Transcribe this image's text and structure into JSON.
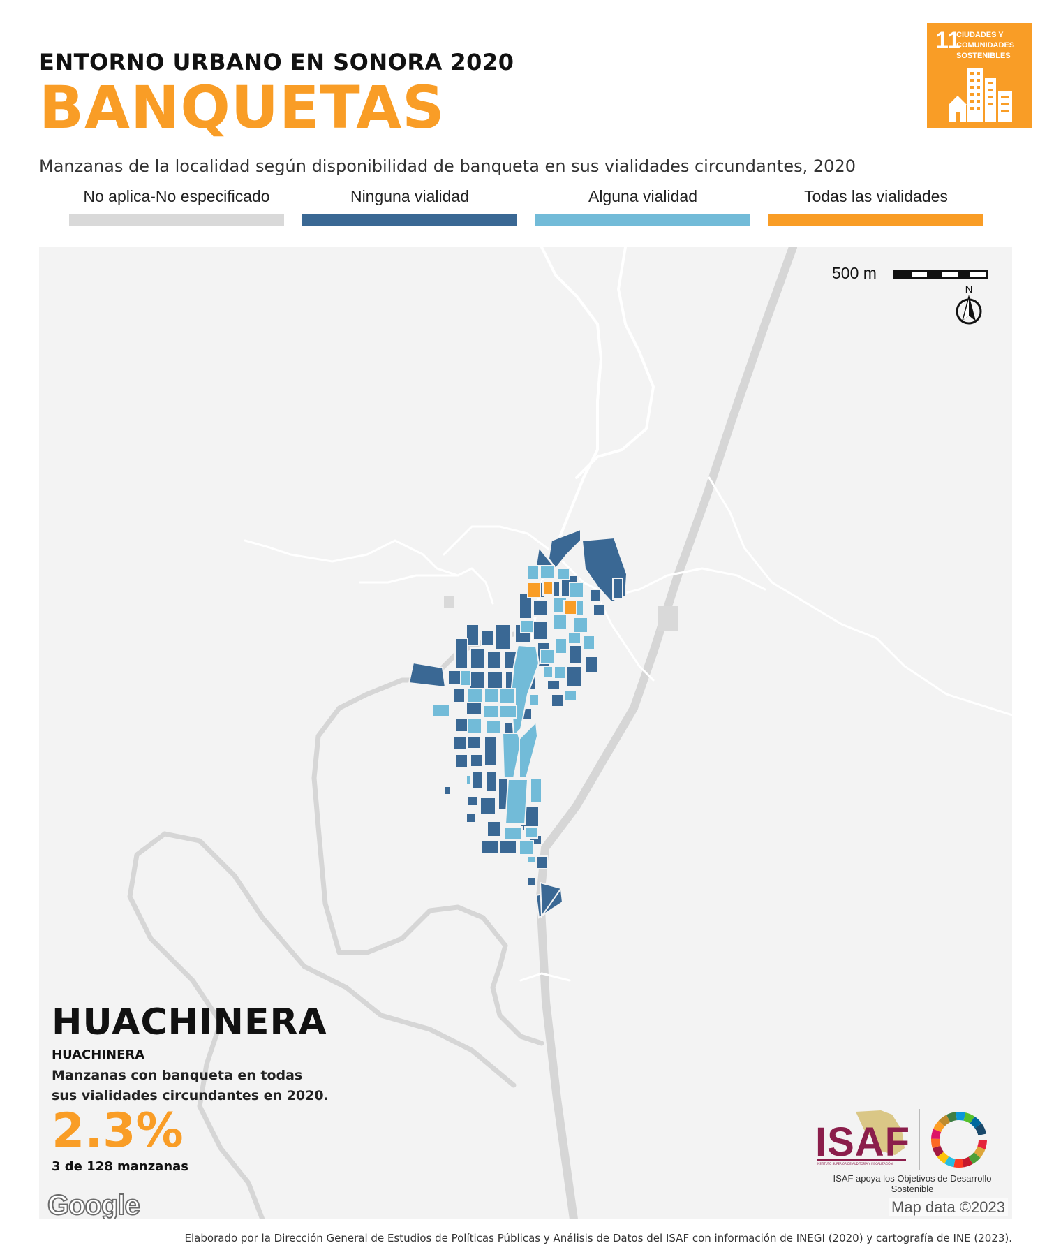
{
  "header": {
    "kicker": "ENTORNO URBANO EN SONORA 2020",
    "title": "BANQUETAS",
    "subtitle": "Manzanas de la localidad según disponibilidad de banqueta en sus vialidades circundantes, 2020"
  },
  "sdg_badge": {
    "number": "11",
    "text": "CIUDADES Y COMUNIDADES SOSTENIBLES",
    "color": "#F99D26",
    "icon": "city-buildings-icon"
  },
  "legend": [
    {
      "label": "No aplica-No especificado",
      "color": "#D9D9D9"
    },
    {
      "label": "Ninguna vialidad",
      "color": "#3A6894"
    },
    {
      "label": "Alguna vialidad",
      "color": "#72BBD8"
    },
    {
      "label": "Todas las vialidades",
      "color": "#F99D26"
    }
  ],
  "map": {
    "scale_label": "500 m",
    "north_label": "N",
    "background_color": "#F3F3F3",
    "road_color": "#D9D9D9"
  },
  "locality": {
    "name": "HUACHINERA",
    "municipality": "HUACHINERA",
    "description": "Manzanas con banqueta en todas sus vialidades circundantes en 2020.",
    "percentage": "2.3%",
    "count_text": "3 de 128 manzanas"
  },
  "attribution": {
    "google": "Google",
    "map_data": "Map data ©2023"
  },
  "logo": {
    "isaf_name": "ISAF",
    "isaf_subtext": "INSTITUTO SUPERIOR DE AUDITORÍA Y FISCALIZACIÓN",
    "caption": "ISAF apoya los Objetivos de Desarrollo Sostenible"
  },
  "footer": "Elaborado por la Dirección General de Estudios de Políticas Públicas y Análisis de Datos del ISAF con información de INEGI (2020) y cartografía de INE (2023)."
}
